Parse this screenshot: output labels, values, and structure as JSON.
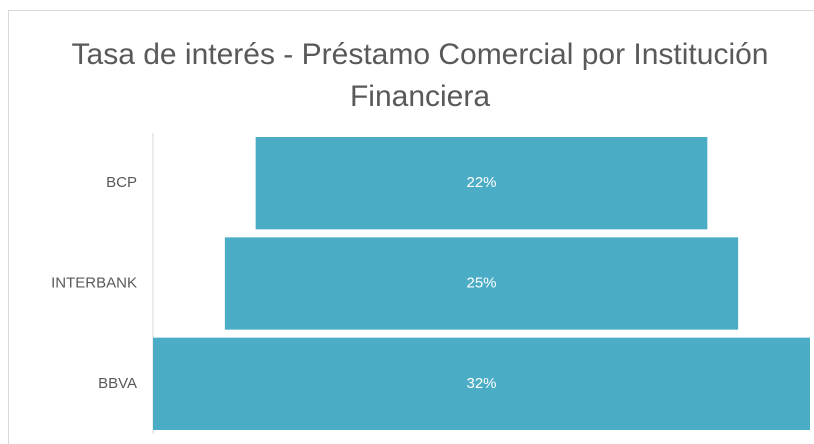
{
  "chart_data": {
    "type": "funnel",
    "title": "Tasa de interés - Préstamo Comercial por Institución Financiera",
    "categories": [
      "BCP",
      "INTERBANK",
      "BBVA"
    ],
    "values": [
      22,
      25,
      32
    ],
    "value_labels": [
      "22%",
      "25%",
      "32%"
    ],
    "color": "#4bacc6"
  }
}
